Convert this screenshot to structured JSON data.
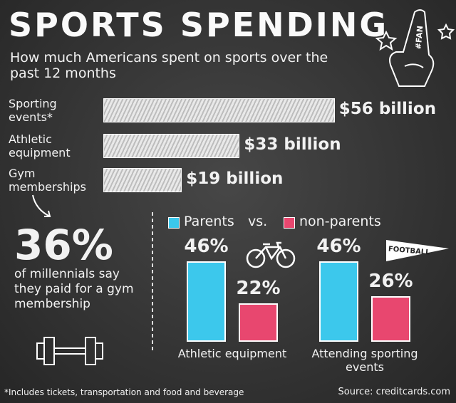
{
  "title": "SPORTS SPENDING",
  "subtitle": "How much Americans spent on sports over the past 12 months",
  "fan_finger": "#FAN",
  "pennant": "FOOTBALL",
  "stat": {
    "value_label": "36%",
    "text": "of millennials say they paid for a gym membership"
  },
  "footnote": "*Includes tickets, transportation and food and beverage",
  "source": "Source: creditcards.com",
  "chart_data": [
    {
      "type": "hbar",
      "categories": [
        "Sporting events*",
        "Athletic equipment",
        "Gym memberships"
      ],
      "values": [
        56,
        33,
        19
      ],
      "value_labels": [
        "$56 billion",
        "$33 billion",
        "$19 billion"
      ]
    },
    {
      "type": "grouped-bar",
      "legend_separator": "vs.",
      "categories": [
        "Athletic equipment",
        "Attending sporting events"
      ],
      "series": [
        {
          "name": "Parents",
          "color": "#3cc8ec",
          "values": [
            46,
            46
          ],
          "value_labels": [
            "46%",
            "46%"
          ]
        },
        {
          "name": "non-parents",
          "color": "#e8476f",
          "values": [
            22,
            26
          ],
          "value_labels": [
            "22%",
            "26%"
          ]
        }
      ]
    }
  ]
}
